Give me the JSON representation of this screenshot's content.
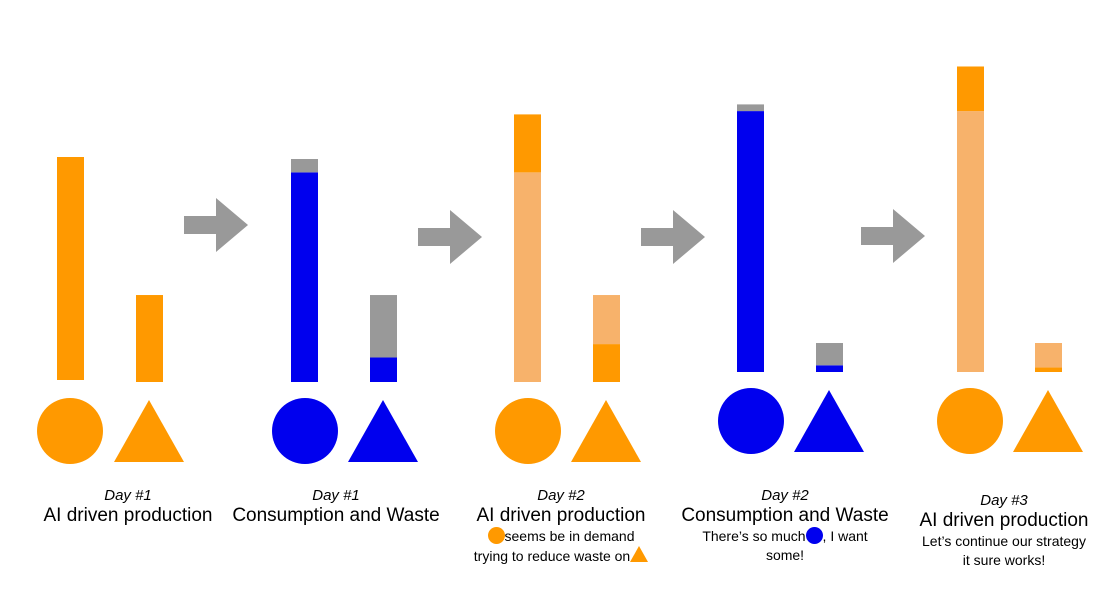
{
  "colors": {
    "production": "#FF9900",
    "production_light": "#F7B26B",
    "consumption": "#0000EE",
    "waste": "#999999",
    "arrow": "#999999"
  },
  "stages": [
    {
      "day": "Day #1",
      "title": "AI driven production",
      "bars": [
        {
          "shape": "circle",
          "segments": [
            {
              "kind": "production",
              "value": 100
            }
          ]
        },
        {
          "shape": "triangle",
          "segments": [
            {
              "kind": "production",
              "value": 39
            }
          ]
        }
      ]
    },
    {
      "day": "Day #1",
      "title": "Consumption and Waste",
      "bars": [
        {
          "shape": "circle",
          "segments": [
            {
              "kind": "consumption",
              "value": 94
            },
            {
              "kind": "waste",
              "value": 6
            }
          ]
        },
        {
          "shape": "triangle",
          "segments": [
            {
              "kind": "consumption",
              "value": 11
            },
            {
              "kind": "waste",
              "value": 28
            }
          ]
        }
      ]
    },
    {
      "day": "Day #2",
      "title": "AI driven production",
      "note_lines": [
        [
          {
            "glyph": "circle"
          },
          {
            "text": "seems be in demand"
          }
        ],
        [
          {
            "text": "trying to reduce waste on"
          },
          {
            "glyph": "triangle"
          }
        ]
      ],
      "bars": [
        {
          "shape": "circle",
          "segments": [
            {
              "kind": "production_light",
              "value": 94
            },
            {
              "kind": "production",
              "value": 26
            }
          ]
        },
        {
          "shape": "triangle",
          "segments": [
            {
              "kind": "production",
              "value": 17
            },
            {
              "kind": "production_light",
              "value": 22
            }
          ]
        }
      ]
    },
    {
      "day": "Day #2",
      "title": "Consumption and Waste",
      "note_lines": [
        [
          {
            "text": "There’s so much"
          },
          {
            "glyph": "circle_blue"
          },
          {
            "text": ", I want"
          }
        ],
        [
          {
            "text": "some!"
          }
        ]
      ],
      "bars": [
        {
          "shape": "circle",
          "segments": [
            {
              "kind": "consumption",
              "value": 117
            },
            {
              "kind": "waste",
              "value": 3
            }
          ]
        },
        {
          "shape": "triangle",
          "segments": [
            {
              "kind": "consumption",
              "value": 3
            },
            {
              "kind": "waste",
              "value": 10
            }
          ]
        }
      ]
    },
    {
      "day": "Day #3",
      "title": "AI driven production",
      "note_lines": [
        [
          {
            "text": "Let’s continue our strategy"
          }
        ],
        [
          {
            "text": "it sure works!"
          }
        ]
      ],
      "bars": [
        {
          "shape": "circle",
          "segments": [
            {
              "kind": "production_light",
              "value": 117
            },
            {
              "kind": "production",
              "value": 20
            }
          ]
        },
        {
          "shape": "triangle",
          "segments": [
            {
              "kind": "production",
              "value": 2
            },
            {
              "kind": "production_light",
              "value": 11
            }
          ]
        }
      ]
    }
  ]
}
